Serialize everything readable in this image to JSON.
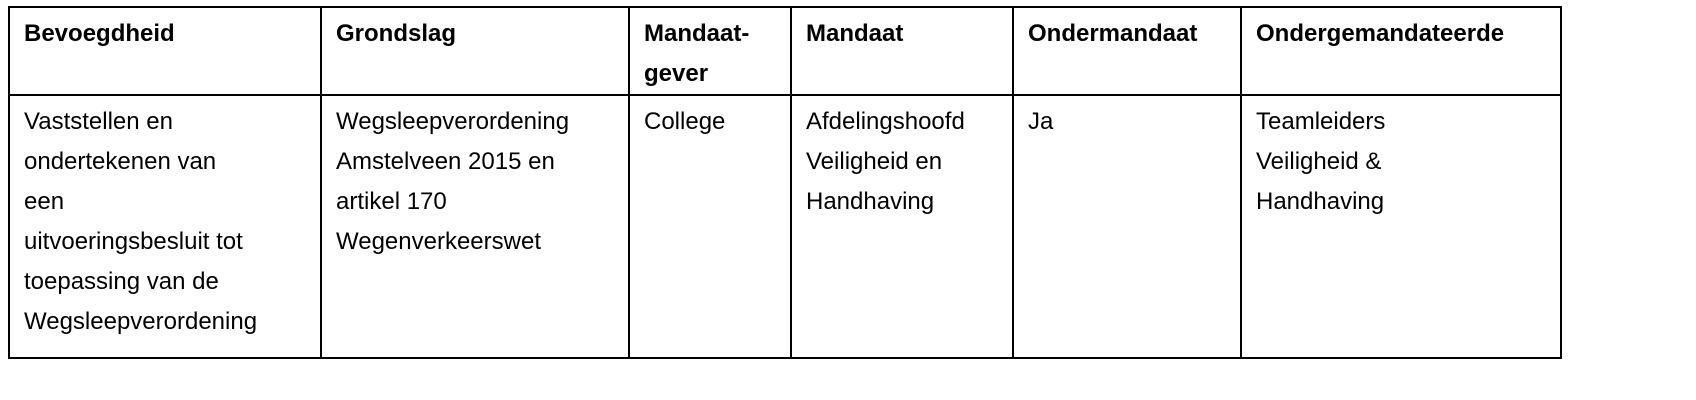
{
  "table": {
    "headers": [
      "Bevoegdheid",
      "Grondslag",
      "Mandaat-\ngever",
      "Mandaat",
      "Ondermandaat",
      "Ondergemandateerde"
    ],
    "header_lines": [
      [
        "Bevoegdheid"
      ],
      [
        "Grondslag"
      ],
      [
        "Mandaat-",
        "gever"
      ],
      [
        "Mandaat"
      ],
      [
        "Ondermandaat"
      ],
      [
        "Ondergemandateerde"
      ]
    ],
    "rows": [
      [
        [
          "Vaststellen en",
          "ondertekenen van",
          "een",
          "uitvoeringsbesluit tot",
          "toepassing van de",
          "Wegsleepverordening"
        ],
        [
          "Wegsleepverordening",
          "Amstelveen 2015 en",
          "artikel 170",
          "Wegenverkeerswet"
        ],
        [
          "College"
        ],
        [
          "Afdelingshoofd",
          "Veiligheid en",
          "Handhaving"
        ],
        [
          "Ja"
        ],
        [
          "Teamleiders",
          "Veiligheid &",
          "Handhaving"
        ]
      ]
    ]
  }
}
